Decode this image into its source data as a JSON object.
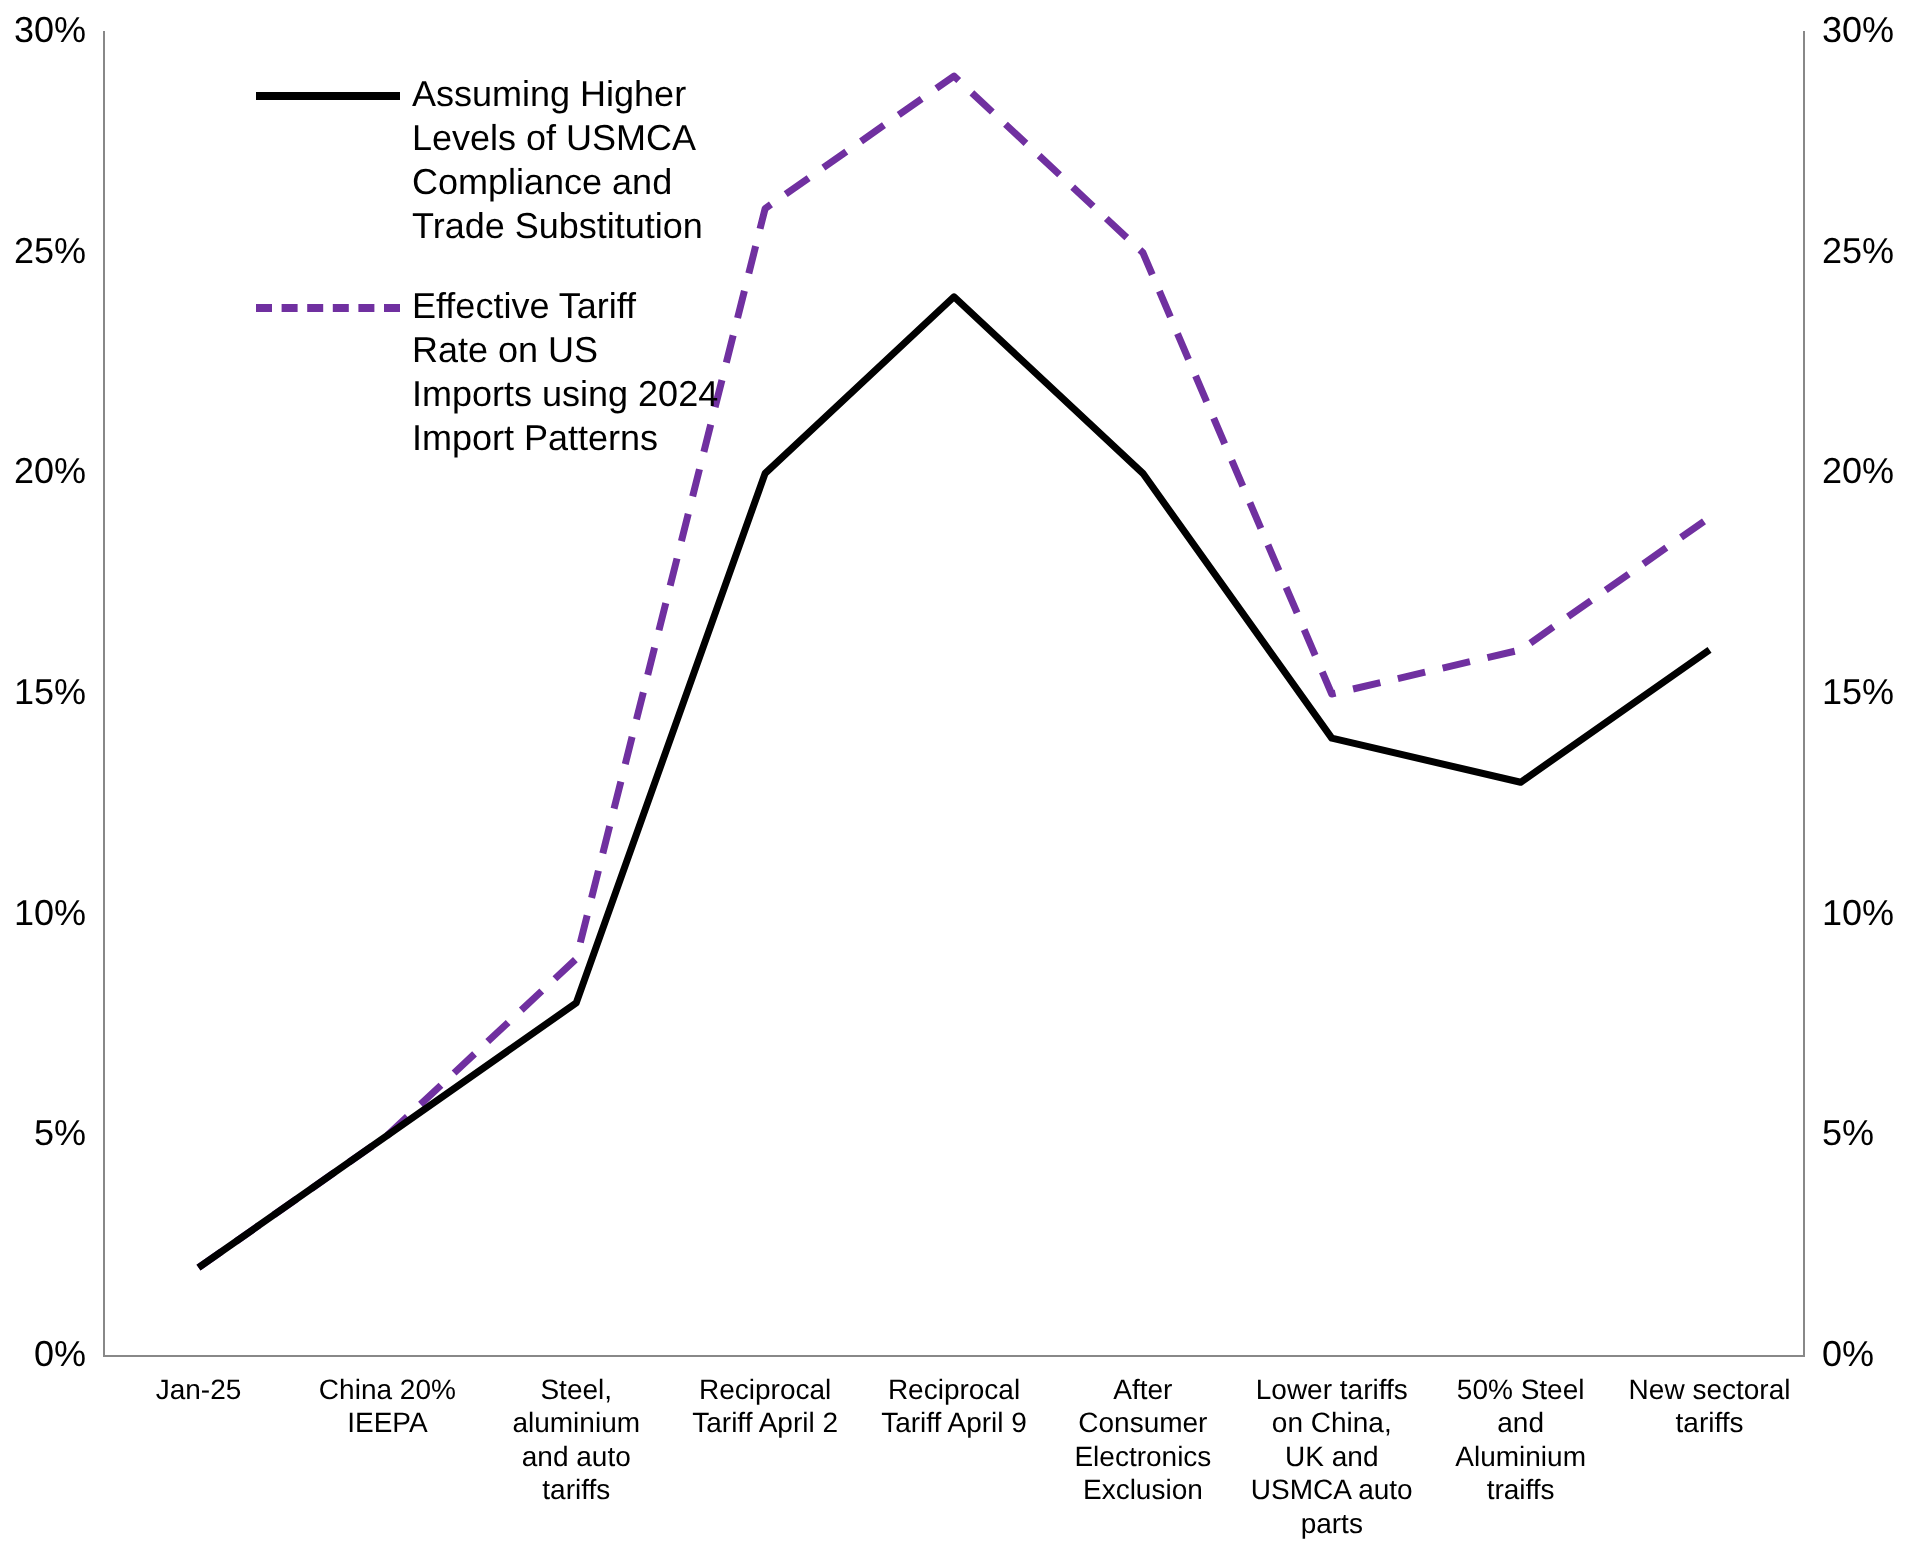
{
  "chart_data": {
    "type": "line",
    "categories": [
      "Jan-25",
      "China 20% IEEPA",
      "Steel, aluminium and auto tariffs",
      "Reciprocal Tariff April 2",
      "Reciprocal Tariff April 9",
      "After Consumer Electronics Exclusion",
      "Lower tariffs on China, UK and USMCA auto parts",
      "50% Steel and Aluminium traiffs",
      "New sectoral tariffs"
    ],
    "series": [
      {
        "name": "Assuming Higher Levels of USMCA Compliance and Trade Substitution",
        "color": "#000000",
        "line_style": "solid",
        "values": [
          2,
          5,
          8,
          20,
          24,
          20,
          14,
          13,
          16
        ]
      },
      {
        "name": "Effective Tariff Rate on US Imports using 2024 Import Patterns",
        "color": "#7030a0",
        "line_style": "dashed",
        "values": [
          2,
          5,
          9,
          26,
          29,
          25,
          15,
          16,
          19
        ]
      }
    ],
    "ylim": [
      0,
      30
    ],
    "yticks": [
      {
        "value": 0,
        "label": "0%"
      },
      {
        "value": 5,
        "label": "5%"
      },
      {
        "value": 10,
        "label": "10%"
      },
      {
        "value": 15,
        "label": "15%"
      },
      {
        "value": 20,
        "label": "20%"
      },
      {
        "value": 25,
        "label": "25%"
      },
      {
        "value": 30,
        "label": "30%"
      }
    ],
    "y2lim": [
      0,
      30
    ],
    "y2ticks": [
      {
        "value": 0,
        "label": "0%"
      },
      {
        "value": 5,
        "label": "5%"
      },
      {
        "value": 10,
        "label": "10%"
      },
      {
        "value": 15,
        "label": "15%"
      },
      {
        "value": 20,
        "label": "20%"
      },
      {
        "value": 25,
        "label": "25%"
      },
      {
        "value": 30,
        "label": "30%"
      }
    ],
    "grid": false,
    "legend": "top left",
    "marker": "none"
  }
}
